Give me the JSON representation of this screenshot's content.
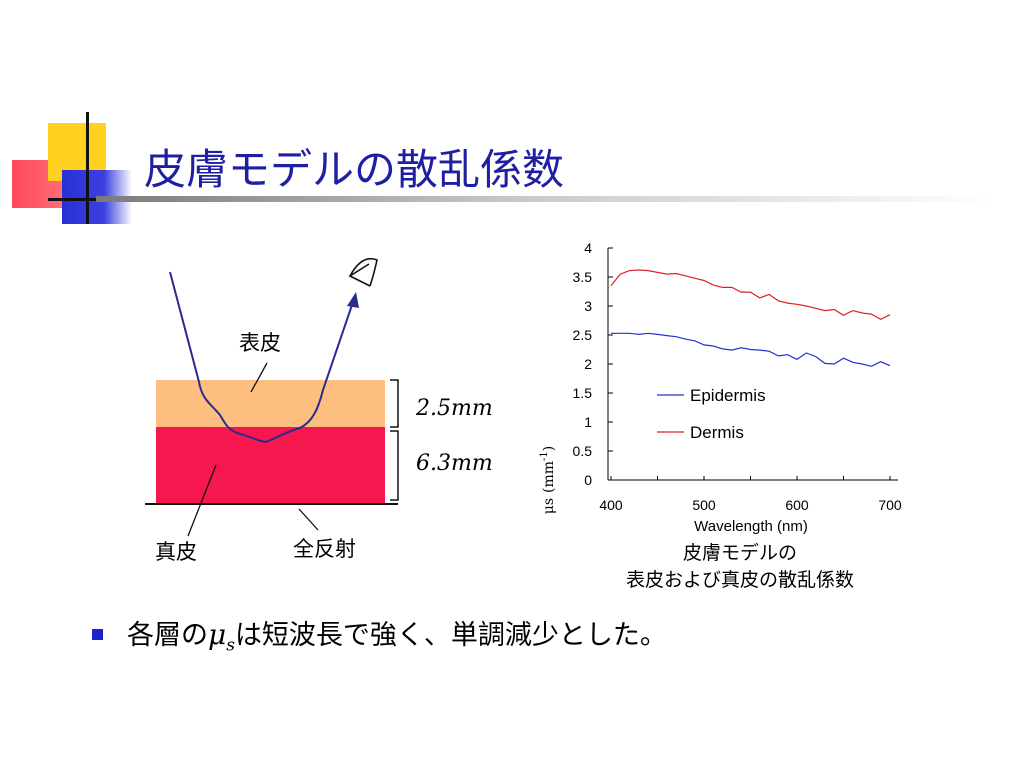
{
  "slide": {
    "title": "皮膚モデルの散乱係数",
    "bullet": {
      "prefix": "各層の",
      "symbol": "μ",
      "symbol_subscript": "s",
      "suffix": "は短波長で強く、単調減少とした。"
    }
  },
  "diagram": {
    "layer_top_label": "表皮",
    "layer_bottom_label": "真皮",
    "boundary_label": "全反射",
    "thickness_top": "2.5mm",
    "thickness_bottom": "6.3mm",
    "colors": {
      "epidermis": "#fcbf80",
      "dermis": "#f5174e",
      "path": "#2a2a8f"
    }
  },
  "caption": {
    "line1": "皮膚モデルの",
    "line2": "表皮および真皮の散乱係数"
  },
  "chart_data": {
    "type": "line",
    "title": "",
    "xlabel": "Wavelength (nm)",
    "ylabel_symbol": "μs",
    "ylabel_unit": "(mm",
    "ylabel_exp": "-1",
    "ylabel_close": ")",
    "xlim": [
      400,
      710
    ],
    "ylim": [
      0,
      4
    ],
    "x_ticks": [
      "400",
      "500",
      "600",
      "700"
    ],
    "y_ticks": [
      "0",
      "0.5",
      "1",
      "1.5",
      "2",
      "2.5",
      "3",
      "3.5",
      "4"
    ],
    "legend_position": "center",
    "series": [
      {
        "name": "Epidermis",
        "color": "#2233cc",
        "x": [
          400,
          410,
          420,
          430,
          440,
          450,
          460,
          470,
          480,
          490,
          500,
          510,
          520,
          530,
          540,
          550,
          560,
          570,
          580,
          590,
          600,
          610,
          620,
          630,
          640,
          650,
          660,
          670,
          680,
          690,
          700
        ],
        "y": [
          2.53,
          2.53,
          2.53,
          2.51,
          2.53,
          2.51,
          2.49,
          2.47,
          2.43,
          2.4,
          2.33,
          2.31,
          2.26,
          2.24,
          2.28,
          2.25,
          2.24,
          2.22,
          2.14,
          2.16,
          2.08,
          2.19,
          2.13,
          2.01,
          2.0,
          2.1,
          2.03,
          2.0,
          1.96,
          2.04,
          1.97
        ]
      },
      {
        "name": "Dermis",
        "color": "#dd2222",
        "x": [
          400,
          410,
          420,
          430,
          440,
          450,
          460,
          470,
          480,
          490,
          500,
          510,
          520,
          530,
          540,
          550,
          560,
          570,
          580,
          590,
          600,
          610,
          620,
          630,
          640,
          650,
          660,
          670,
          680,
          690,
          700
        ],
        "y": [
          3.35,
          3.55,
          3.61,
          3.62,
          3.61,
          3.58,
          3.55,
          3.56,
          3.52,
          3.48,
          3.44,
          3.36,
          3.32,
          3.32,
          3.24,
          3.24,
          3.14,
          3.2,
          3.09,
          3.05,
          3.03,
          3.0,
          2.96,
          2.92,
          2.94,
          2.84,
          2.92,
          2.88,
          2.86,
          2.77,
          2.85
        ]
      }
    ]
  }
}
